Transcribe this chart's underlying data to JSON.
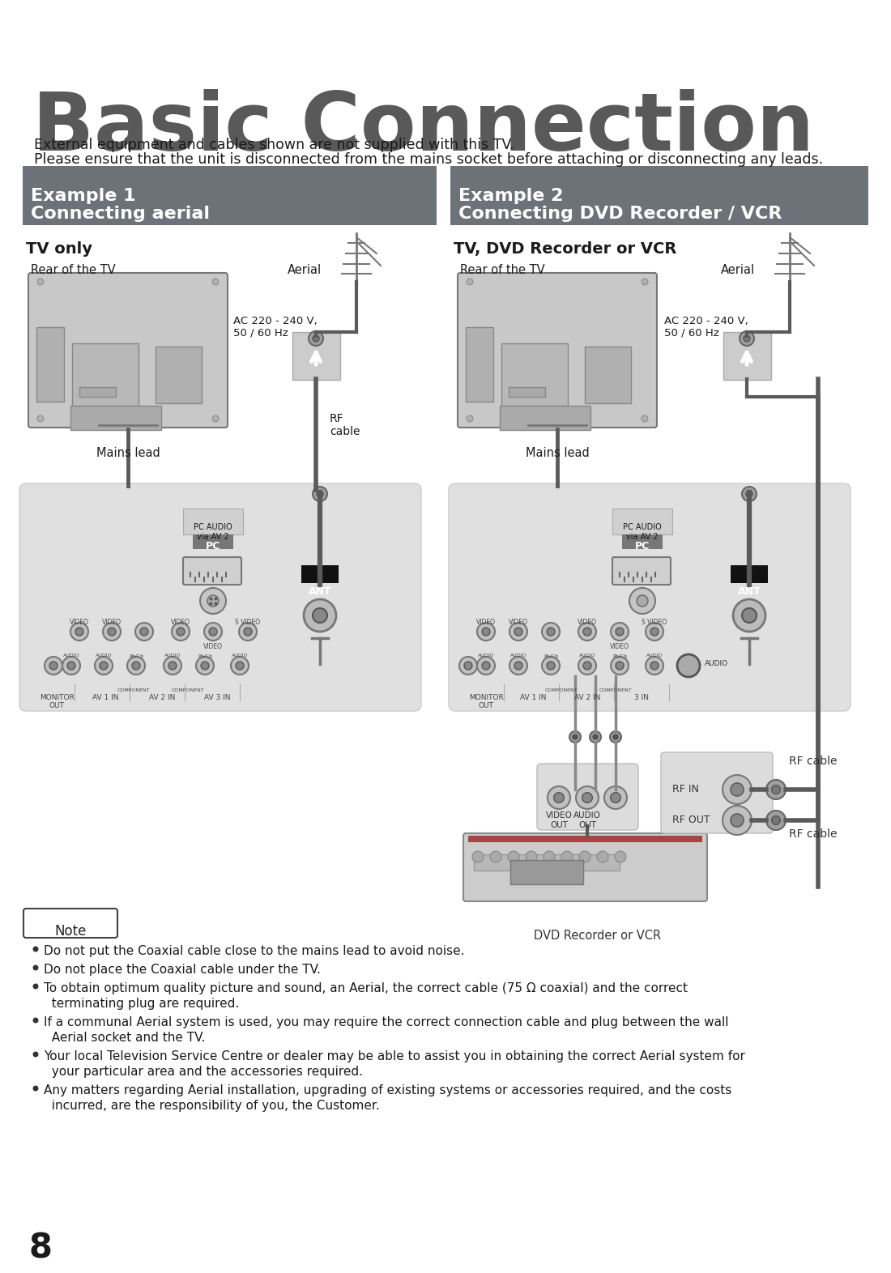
{
  "title": "Basic Connection",
  "subtitle_line1": "External equipment and cables shown are not supplied with this TV.",
  "subtitle_line2": "Please ensure that the unit is disconnected from the mains socket before attaching or disconnecting any leads.",
  "example1_header_line1": "Example 1",
  "example1_header_line2": "Connecting aerial",
  "example2_header_line1": "Example 2",
  "example2_header_line2": "Connecting DVD Recorder / VCR",
  "tv_only_label": "TV only",
  "tv_dvd_label": "TV, DVD Recorder or VCR",
  "rear_tv_label": "Rear of the TV",
  "aerial_label": "Aerial",
  "ac_label": "AC 220 - 240 V,\n50 / 60 Hz",
  "rf_cable_label": "RF\ncable",
  "mains_lead_label": "Mains lead",
  "video_out_label": "VIDEO\nOUT",
  "audio_out_label": "AUDIO\nOUT",
  "dvd_label": "DVD Recorder or VCR",
  "rf_in_label": "RF IN",
  "rf_out_label": "RF OUT",
  "rf_cable_label2": "RF cable",
  "note_label": "Note",
  "note_items": [
    "Do not put the Coaxial cable close to the mains lead to avoid noise.",
    "Do not place the Coaxial cable under the TV.",
    "To obtain optimum quality picture and sound, an Aerial, the correct cable (75 Ω coaxial) and the correct\n  terminating plug are required.",
    "If a communal Aerial system is used, you may require the correct connection cable and plug between the wall\n  Aerial socket and the TV.",
    "Your local Television Service Centre or dealer may be able to assist you in obtaining the correct Aerial system for\n  your particular area and the accessories required.",
    "Any matters regarding Aerial installation, upgrading of existing systems or accessories required, and the costs\n  incurred, are the responsibility of you, the Customer."
  ],
  "page_number": "8",
  "header_bg_color": "#6d7278",
  "header_text_color": "#ffffff",
  "panel_bg_color": "#e0e0e0",
  "title_color": "#595959",
  "body_text_color": "#1a1a1a",
  "ant_bg_color": "#1a1a1a",
  "cable_color": "#5a5a5a",
  "tv_body_color": "#c8c8c8",
  "tv_edge_color": "#777777"
}
